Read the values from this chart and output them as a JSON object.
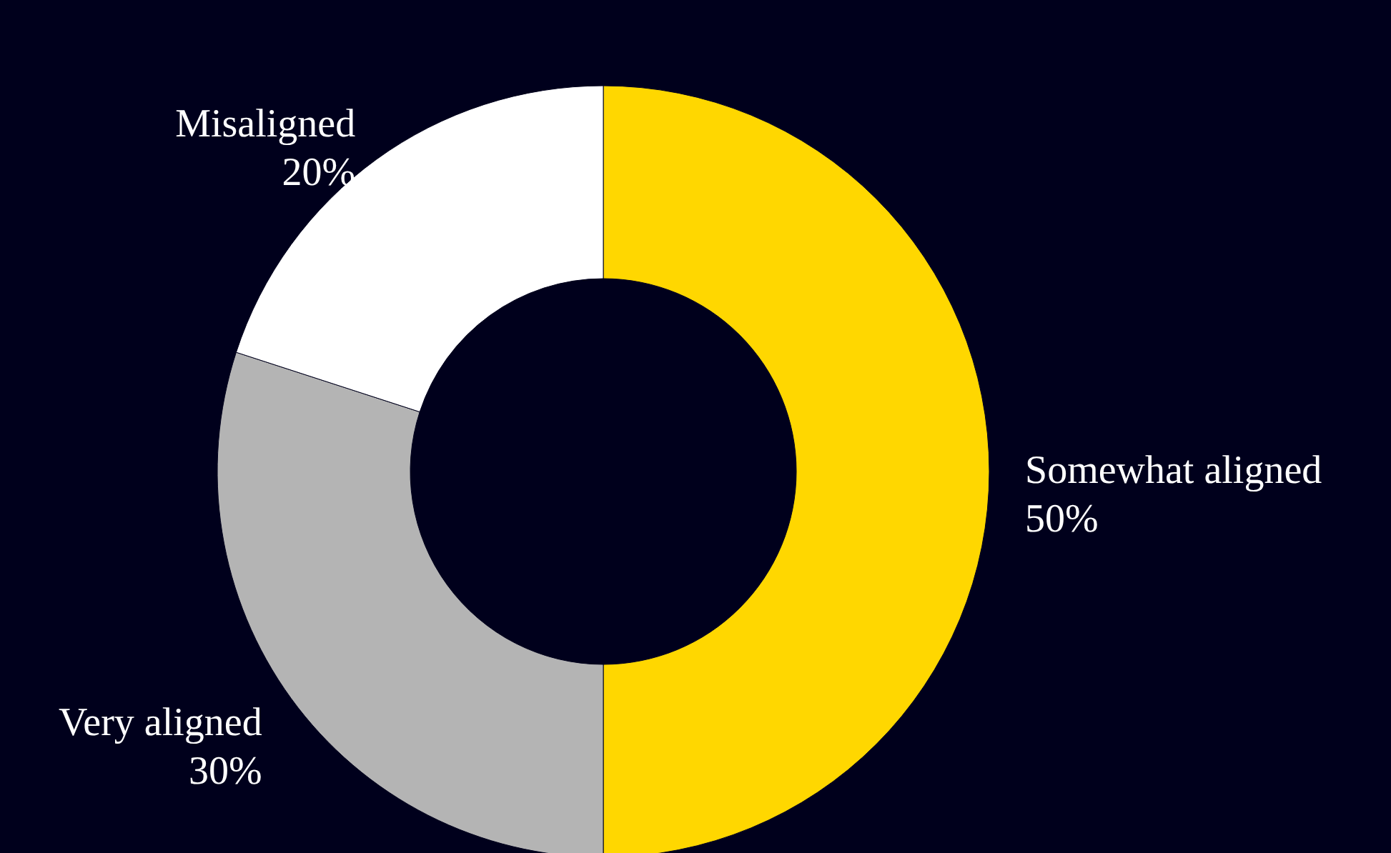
{
  "chart_data": {
    "type": "donut",
    "categories": [
      "Somewhat aligned",
      "Very aligned",
      "Misaligned"
    ],
    "values": [
      50,
      30,
      20
    ],
    "colors": [
      "#ffd700",
      "#b4b4b4",
      "#ffffff"
    ],
    "value_labels": [
      "50%",
      "30%",
      "20%"
    ]
  }
}
